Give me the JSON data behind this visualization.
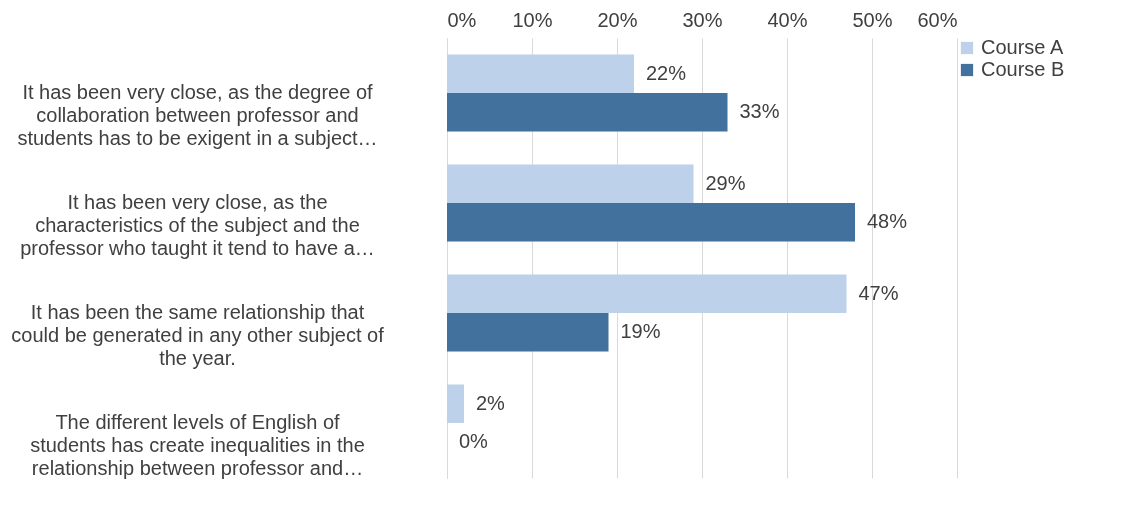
{
  "chart_data": {
    "type": "bar",
    "orientation": "horizontal",
    "categories": [
      "It has been very close, as the degree of collaboration between professor and students has to be exigent in a subject…",
      "It has been very close, as the characteristics of the subject and the professor who taught it tend to have a…",
      "It has been the same relationship that could be generated in any other subject of the year.",
      "The different levels of English of students has create inequalities in the relationship between professor and…"
    ],
    "series": [
      {
        "name": "Course A",
        "color": "#bdd1ea",
        "values": [
          22,
          29,
          47,
          2
        ],
        "value_labels": [
          "22%",
          "29%",
          "47%",
          "2%"
        ]
      },
      {
        "name": "Course B",
        "color": "#41719c",
        "values": [
          33,
          48,
          19,
          0
        ],
        "value_labels": [
          "33%",
          "48%",
          "19%",
          "0%"
        ]
      }
    ],
    "xlim": [
      0,
      60
    ],
    "xticks": [
      {
        "value": 0,
        "label": "0%"
      },
      {
        "value": 10,
        "label": "10%"
      },
      {
        "value": 20,
        "label": "20%"
      },
      {
        "value": 30,
        "label": "30%"
      },
      {
        "value": 40,
        "label": "40%"
      },
      {
        "value": 50,
        "label": "50%"
      },
      {
        "value": 60,
        "label": "60%"
      }
    ],
    "grid": true,
    "legend": "right"
  }
}
